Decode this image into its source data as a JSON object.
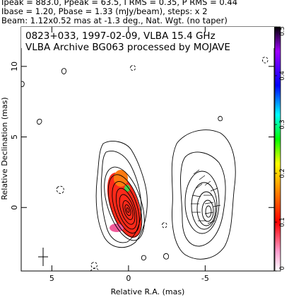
{
  "header": {
    "line1": "Ipeak = 883.0, Ppeak = 63.5, I RMS = 0.35, P RMS = 0.44",
    "line2": "Ibase = 1.20, Pbase = 1.33 (mJy/beam), steps: x 2",
    "line3": "Beam: 1.12x0.52 mas at -1.3 deg., Nat. Wgt. (no taper)"
  },
  "chart_data": {
    "type": "heatmap",
    "title": "0823+033, 1997-02-09, VLBA 15.4 GHz",
    "subtitle": "VLBA Archive BG063 processed by MOJAVE",
    "xlabel": "Relative R.A. (mas)",
    "ylabel": "Relative Declination (mas)",
    "xlim": [
      7,
      -9.5
    ],
    "ylim": [
      -4.5,
      12.8
    ],
    "x_ticks": [
      5,
      0,
      -5
    ],
    "x_tick_labels": [
      "5",
      "0",
      "-5"
    ],
    "y_ticks": [
      0,
      5,
      10
    ],
    "y_tick_labels": [
      "0",
      "5",
      "10"
    ],
    "colorbar": {
      "min": 0,
      "max": 0.5,
      "ticks": [
        0,
        0.1,
        0.2,
        0.3,
        0.4,
        0.5
      ],
      "tick_labels": [
        "0",
        "0.1",
        "0.2",
        "0.3",
        "0.4",
        "0.5"
      ],
      "colors": [
        "#ffffff",
        "#ff9ecf",
        "#ff0000",
        "#ff7f00",
        "#ffff00",
        "#00ff00",
        "#00ffff",
        "#0000ff",
        "#a000ff",
        "#000000"
      ]
    },
    "levels_factor": 2,
    "core_peak_position": [
      0,
      0
    ],
    "jet_knot_position": [
      -5.5,
      0
    ],
    "beam": {
      "major_mas": 1.12,
      "minor_mas": 0.52,
      "pa_deg": -1.3
    },
    "grid": false
  }
}
